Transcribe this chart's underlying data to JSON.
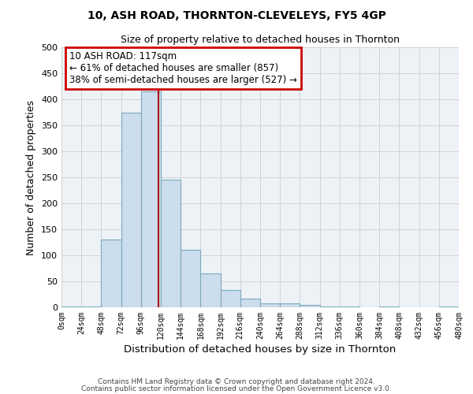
{
  "title": "10, ASH ROAD, THORNTON-CLEVELEYS, FY5 4GP",
  "subtitle": "Size of property relative to detached houses in Thornton",
  "xlabel": "Distribution of detached houses by size in Thornton",
  "ylabel": "Number of detached properties",
  "footnote1": "Contains HM Land Registry data © Crown copyright and database right 2024.",
  "footnote2": "Contains public sector information licensed under the Open Government Licence v3.0.",
  "bar_edges": [
    0,
    24,
    48,
    72,
    96,
    120,
    144,
    168,
    192,
    216,
    240,
    264,
    288,
    312,
    336,
    360,
    384,
    408,
    432,
    456,
    480
  ],
  "bar_heights": [
    2,
    2,
    130,
    375,
    415,
    245,
    110,
    65,
    33,
    17,
    7,
    7,
    5,
    2,
    2,
    0,
    2,
    0,
    0,
    2
  ],
  "bar_color": "#ccdded",
  "bar_edge_color": "#7aaabb",
  "vline_x": 117,
  "vline_color": "#aa0000",
  "ylim": [
    0,
    500
  ],
  "xlim": [
    0,
    480
  ],
  "annotation_title": "10 ASH ROAD: 117sqm",
  "annotation_line1": "← 61% of detached houses are smaller (857)",
  "annotation_line2": "38% of semi-detached houses are larger (527) →",
  "annotation_box_color": "#ffffff",
  "annotation_box_edge_color": "#cc0000",
  "grid_color": "#cccccc",
  "bg_color": "#edf2f7",
  "tick_labels": [
    "0sqm",
    "24sqm",
    "48sqm",
    "72sqm",
    "96sqm",
    "120sqm",
    "144sqm",
    "168sqm",
    "192sqm",
    "216sqm",
    "240sqm",
    "264sqm",
    "288sqm",
    "312sqm",
    "336sqm",
    "360sqm",
    "384sqm",
    "408sqm",
    "432sqm",
    "456sqm",
    "480sqm"
  ]
}
